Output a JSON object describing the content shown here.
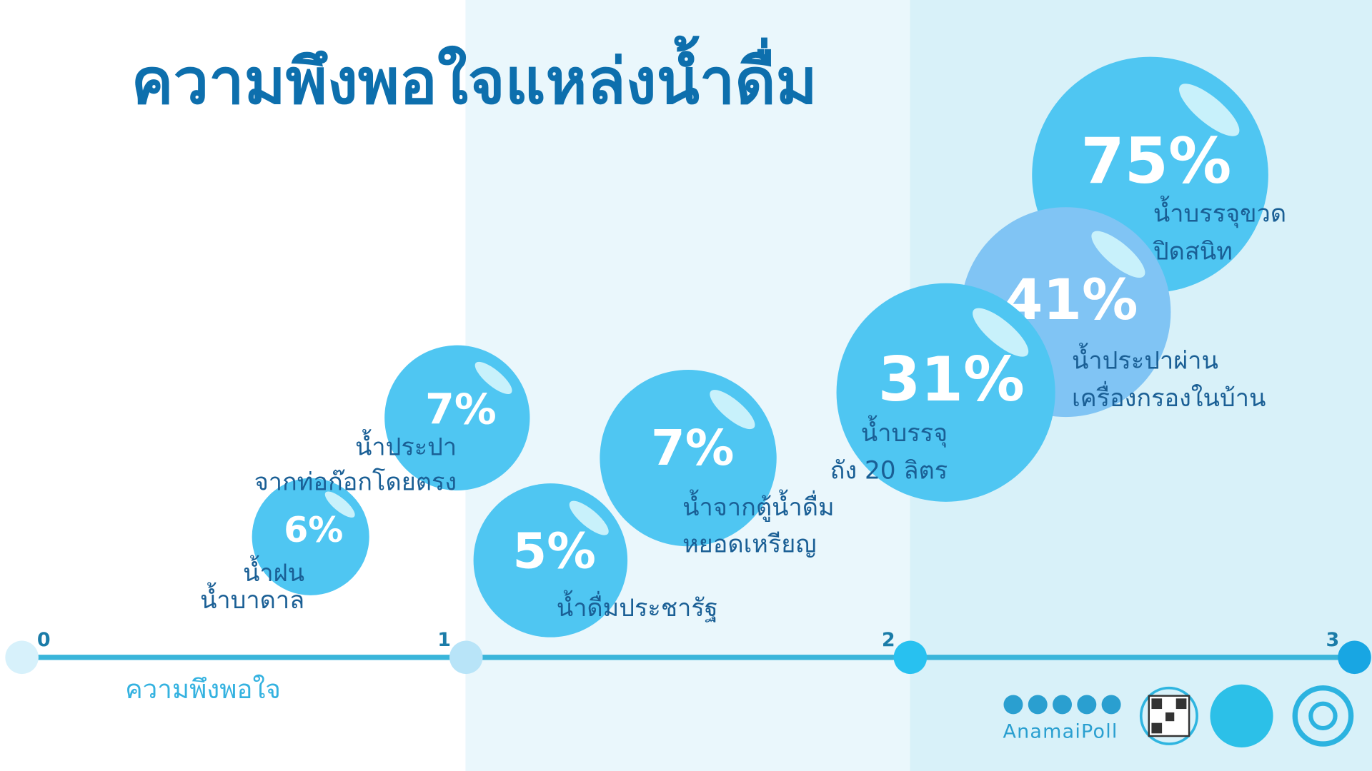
{
  "chart_data": {
    "type": "bubble",
    "title": "ความพึงพอใจแหล่งน้ำดื่ม",
    "x_label": "ความพึงพอใจ",
    "xlim": [
      0,
      3
    ],
    "xticks": [
      0,
      1,
      2,
      3
    ],
    "categories": [
      [
        "น้ำฝน",
        "น้ำบาดาล"
      ],
      [
        "น้ำประปา",
        "จากท่อก๊อกโดยตรง"
      ],
      [
        "น้ำดื่มประชารัฐ"
      ],
      [
        "น้ำจากตู้น้ำดื่ม",
        "หยอดเหรียญ"
      ],
      [
        "น้ำบรรจุ",
        "ถัง 20 ลิตร"
      ],
      [
        "น้ำประปาผ่าน",
        "เครื่องกรองในบ้าน"
      ],
      [
        "น้ำบรรจุขวด",
        "ปิดสนิท"
      ]
    ],
    "x": [
      0.65,
      0.98,
      1.19,
      1.5,
      2.08,
      2.35,
      2.54
    ],
    "values": [
      6,
      7,
      5,
      7,
      31,
      41,
      75
    ],
    "value_labels": [
      "6%",
      "7%",
      "5%",
      "7%",
      "31%",
      "41%",
      "75%"
    ],
    "colors": [
      "#4fc6f2",
      "#4fc6f2",
      "#4fc6f2",
      "#4fc6f2",
      "#4fc6f2",
      "#80c4f4",
      "#4fc6f2"
    ]
  },
  "footer": {
    "brand": "AnamaiPoll"
  }
}
